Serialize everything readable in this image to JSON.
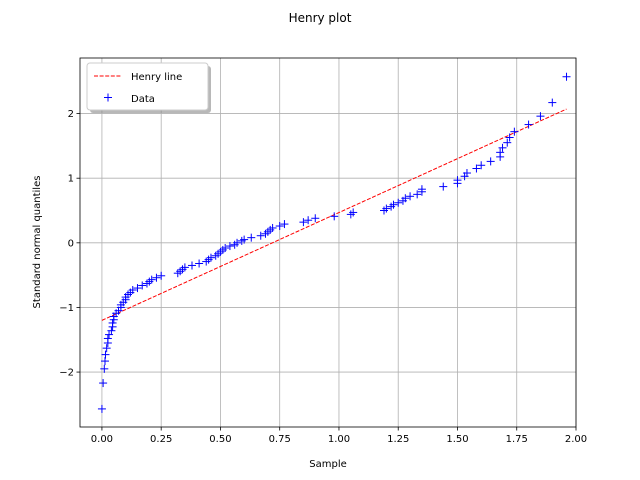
{
  "chart_data": {
    "type": "scatter",
    "title": "Henry plot",
    "xlabel": "Sample",
    "ylabel": "Standard normal quantiles",
    "xlim": [
      -0.0925,
      2.0
    ],
    "ylim": [
      -2.85,
      2.86
    ],
    "x_ticks": [
      0.0,
      0.25,
      0.5,
      0.75,
      1.0,
      1.25,
      1.5,
      1.75,
      2.0
    ],
    "x_tick_labels": [
      "0.00",
      "0.25",
      "0.50",
      "0.75",
      "1.00",
      "1.25",
      "1.50",
      "1.75",
      "2.00"
    ],
    "y_ticks": [
      -2,
      -1,
      0,
      1,
      2
    ],
    "y_tick_labels": [
      "−2",
      "−1",
      "0",
      "1",
      "2"
    ],
    "grid": true,
    "legend_position": "top-left",
    "series": [
      {
        "name": "Henry line",
        "kind": "line",
        "style": "dashed",
        "color": "#ff0000",
        "points": [
          [
            0.0,
            -1.2
          ],
          [
            1.96,
            2.07
          ]
        ]
      },
      {
        "name": "Data",
        "kind": "scatter",
        "marker": "+",
        "color": "#0000ff",
        "points": [
          [
            0.0,
            -2.57
          ],
          [
            0.005,
            -2.17
          ],
          [
            0.01,
            -1.95
          ],
          [
            0.013,
            -1.83
          ],
          [
            0.015,
            -1.73
          ],
          [
            0.02,
            -1.63
          ],
          [
            0.025,
            -1.55
          ],
          [
            0.025,
            -1.48
          ],
          [
            0.03,
            -1.42
          ],
          [
            0.04,
            -1.36
          ],
          [
            0.045,
            -1.3
          ],
          [
            0.045,
            -1.24
          ],
          [
            0.05,
            -1.19
          ],
          [
            0.05,
            -1.14
          ],
          [
            0.06,
            -1.09
          ],
          [
            0.07,
            -1.05
          ],
          [
            0.08,
            -1.0
          ],
          [
            0.08,
            -0.96
          ],
          [
            0.09,
            -0.92
          ],
          [
            0.1,
            -0.88
          ],
          [
            0.1,
            -0.84
          ],
          [
            0.11,
            -0.8
          ],
          [
            0.12,
            -0.77
          ],
          [
            0.13,
            -0.73
          ],
          [
            0.15,
            -0.7
          ],
          [
            0.17,
            -0.66
          ],
          [
            0.19,
            -0.63
          ],
          [
            0.2,
            -0.6
          ],
          [
            0.21,
            -0.57
          ],
          [
            0.23,
            -0.54
          ],
          [
            0.25,
            -0.51
          ],
          [
            0.32,
            -0.47
          ],
          [
            0.33,
            -0.44
          ],
          [
            0.34,
            -0.41
          ],
          [
            0.35,
            -0.38
          ],
          [
            0.38,
            -0.35
          ],
          [
            0.41,
            -0.32
          ],
          [
            0.44,
            -0.29
          ],
          [
            0.45,
            -0.26
          ],
          [
            0.46,
            -0.23
          ],
          [
            0.48,
            -0.2
          ],
          [
            0.49,
            -0.17
          ],
          [
            0.5,
            -0.14
          ],
          [
            0.51,
            -0.11
          ],
          [
            0.52,
            -0.08
          ],
          [
            0.54,
            -0.05
          ],
          [
            0.56,
            -0.03
          ],
          [
            0.57,
            0.0
          ],
          [
            0.59,
            0.03
          ],
          [
            0.6,
            0.05
          ],
          [
            0.63,
            0.08
          ],
          [
            0.67,
            0.11
          ],
          [
            0.69,
            0.14
          ],
          [
            0.7,
            0.17
          ],
          [
            0.71,
            0.2
          ],
          [
            0.72,
            0.23
          ],
          [
            0.75,
            0.26
          ],
          [
            0.77,
            0.29
          ],
          [
            0.85,
            0.32
          ],
          [
            0.87,
            0.35
          ],
          [
            0.9,
            0.38
          ],
          [
            0.98,
            0.41
          ],
          [
            1.05,
            0.44
          ],
          [
            1.06,
            0.47
          ],
          [
            1.19,
            0.5
          ],
          [
            1.2,
            0.53
          ],
          [
            1.22,
            0.56
          ],
          [
            1.23,
            0.59
          ],
          [
            1.25,
            0.62
          ],
          [
            1.27,
            0.65
          ],
          [
            1.28,
            0.69
          ],
          [
            1.3,
            0.72
          ],
          [
            1.33,
            0.75
          ],
          [
            1.35,
            0.79
          ],
          [
            1.35,
            0.83
          ],
          [
            1.44,
            0.87
          ],
          [
            1.5,
            0.92
          ],
          [
            1.5,
            0.97
          ],
          [
            1.53,
            1.03
          ],
          [
            1.54,
            1.08
          ],
          [
            1.58,
            1.15
          ],
          [
            1.6,
            1.2
          ],
          [
            1.64,
            1.26
          ],
          [
            1.68,
            1.33
          ],
          [
            1.68,
            1.4
          ],
          [
            1.69,
            1.47
          ],
          [
            1.71,
            1.55
          ],
          [
            1.72,
            1.63
          ],
          [
            1.74,
            1.72
          ],
          [
            1.8,
            1.83
          ],
          [
            1.85,
            1.96
          ],
          [
            1.9,
            2.17
          ],
          [
            1.96,
            2.57
          ]
        ]
      }
    ]
  }
}
